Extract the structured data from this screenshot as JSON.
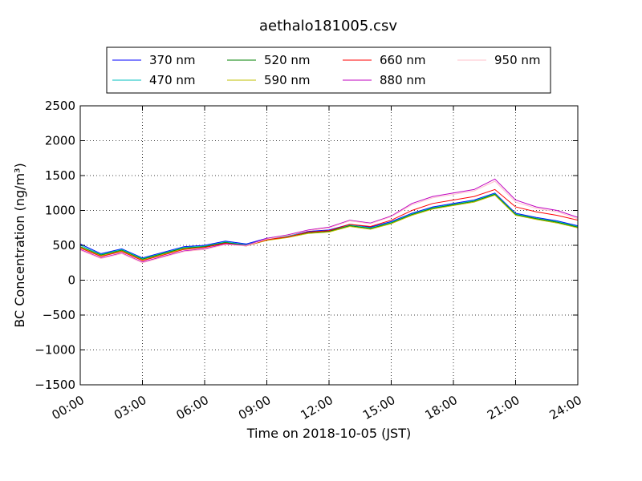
{
  "chart_data": {
    "type": "line",
    "title": "aethalo181005.csv",
    "xlabel": "Time on 2018-10-05 (JST)",
    "ylabel": "BC Concentration (ng/m³)",
    "xlim": [
      0,
      24
    ],
    "ylim": [
      -1500,
      2500
    ],
    "xticks": [
      0,
      3,
      6,
      9,
      12,
      15,
      18,
      21,
      24
    ],
    "xtick_labels": [
      "00:00",
      "03:00",
      "06:00",
      "09:00",
      "12:00",
      "15:00",
      "18:00",
      "21:00",
      "24:00"
    ],
    "yticks": [
      -1500,
      -1000,
      -500,
      0,
      500,
      1000,
      1500,
      2000,
      2500
    ],
    "ytick_labels": [
      "−1500",
      "−1000",
      "−500",
      "0",
      "500",
      "1000",
      "1500",
      "2000",
      "2500"
    ],
    "grid": true,
    "legend_position": "top",
    "x_time_step_hours": 1,
    "series": [
      {
        "name": "370 nm",
        "color": "#0000ff",
        "values": [
          520,
          380,
          450,
          320,
          400,
          480,
          500,
          560,
          520,
          600,
          640,
          700,
          720,
          800,
          760,
          840,
          960,
          1050,
          1100,
          1150,
          1250,
          960,
          900,
          850,
          780
        ]
      },
      {
        "name": "470 nm",
        "color": "#00bfbf",
        "values": [
          500,
          370,
          440,
          310,
          390,
          470,
          490,
          550,
          510,
          590,
          630,
          690,
          710,
          790,
          750,
          830,
          950,
          1040,
          1090,
          1140,
          1240,
          950,
          890,
          840,
          770
        ]
      },
      {
        "name": "520 nm",
        "color": "#008000",
        "values": [
          480,
          360,
          430,
          300,
          380,
          460,
          480,
          540,
          500,
          580,
          620,
          680,
          700,
          780,
          740,
          820,
          940,
          1030,
          1080,
          1130,
          1230,
          940,
          880,
          830,
          760
        ]
      },
      {
        "name": "590 nm",
        "color": "#bfbf00",
        "values": [
          470,
          350,
          420,
          290,
          370,
          450,
          470,
          530,
          490,
          570,
          610,
          670,
          690,
          770,
          730,
          810,
          930,
          1020,
          1070,
          1120,
          1220,
          930,
          870,
          820,
          750
        ]
      },
      {
        "name": "660 nm",
        "color": "#ff0000",
        "values": [
          460,
          340,
          410,
          280,
          360,
          440,
          470,
          530,
          490,
          580,
          620,
          690,
          710,
          800,
          770,
          860,
          1000,
          1100,
          1150,
          1200,
          1300,
          1050,
          980,
          930,
          860
        ]
      },
      {
        "name": "880 nm",
        "color": "#bf00bf",
        "values": [
          440,
          320,
          390,
          260,
          340,
          420,
          450,
          520,
          500,
          600,
          650,
          720,
          760,
          860,
          820,
          920,
          1100,
          1200,
          1250,
          1300,
          1450,
          1150,
          1050,
          1000,
          900
        ]
      },
      {
        "name": "950 nm",
        "color": "#ffc0cb",
        "values": [
          430,
          310,
          380,
          250,
          330,
          410,
          440,
          510,
          490,
          590,
          640,
          710,
          750,
          850,
          810,
          910,
          1080,
          1180,
          1230,
          1280,
          1420,
          1120,
          1030,
          980,
          880
        ]
      }
    ]
  }
}
